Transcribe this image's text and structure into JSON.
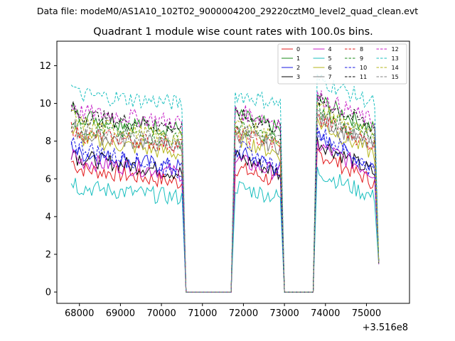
{
  "suptitle": "Data file: modeM0/AS1A10_102T02_9000004200_29220cztM0_level2_quad_clean.evt",
  "chart_data": {
    "type": "line",
    "title": "Quadrant 1 module wise count rates with 100.0s bins.",
    "xlabel": "",
    "ylabel": "",
    "x_offset_label": "+3.516e8",
    "xlim": [
      67450,
      76050
    ],
    "ylim": [
      -0.6,
      13.3
    ],
    "xticks": [
      68000,
      69000,
      70000,
      71000,
      72000,
      73000,
      74000,
      75000
    ],
    "yticks": [
      0,
      2,
      4,
      6,
      8,
      10,
      12
    ],
    "legend_position": "top-right",
    "series": [
      {
        "name": "0",
        "color": "#e31a1c",
        "dash": "solid",
        "base": 6.6,
        "trend": -0.8
      },
      {
        "name": "1",
        "color": "#1a8a1a",
        "dash": "solid",
        "base": 9.4,
        "trend": -0.8
      },
      {
        "name": "2",
        "color": "#1a1ae3",
        "dash": "solid",
        "base": 7.4,
        "trend": -0.8
      },
      {
        "name": "3",
        "color": "#000000",
        "dash": "solid",
        "base": 7.2,
        "trend": -0.9
      },
      {
        "name": "4",
        "color": "#c41ac4",
        "dash": "solid",
        "base": 7.0,
        "trend": -0.7
      },
      {
        "name": "5",
        "color": "#1abfbf",
        "dash": "solid",
        "base": 5.6,
        "trend": -0.6
      },
      {
        "name": "6",
        "color": "#b5b51a",
        "dash": "solid",
        "base": 8.2,
        "trend": -0.9
      },
      {
        "name": "7",
        "color": "#808080",
        "dash": "solid",
        "base": 8.4,
        "trend": -0.7
      },
      {
        "name": "8",
        "color": "#e31a1c",
        "dash": "dashed",
        "base": 8.4,
        "trend": -0.6
      },
      {
        "name": "9",
        "color": "#1a8a1a",
        "dash": "dashed",
        "base": 8.8,
        "trend": -0.8
      },
      {
        "name": "10",
        "color": "#1a1ae3",
        "dash": "dashed",
        "base": 7.8,
        "trend": -1.4
      },
      {
        "name": "11",
        "color": "#000000",
        "dash": "dashed",
        "base": 9.4,
        "trend": -0.7
      },
      {
        "name": "12",
        "color": "#c41ac4",
        "dash": "dashed",
        "base": 9.6,
        "trend": -0.6
      },
      {
        "name": "13",
        "color": "#1abfbf",
        "dash": "dashed",
        "base": 10.5,
        "trend": -0.5
      },
      {
        "name": "14",
        "color": "#b5b51a",
        "dash": "dashed",
        "base": 9.0,
        "trend": -0.9
      },
      {
        "name": "15",
        "color": "#808080",
        "dash": "dashed",
        "base": 8.6,
        "trend": -0.6
      }
    ],
    "segments": [
      {
        "start": 67800,
        "end": 70500,
        "on": true
      },
      {
        "start": 70600,
        "end": 71700,
        "on": false
      },
      {
        "start": 71800,
        "end": 72900,
        "on": true
      },
      {
        "start": 73000,
        "end": 73700,
        "on": false
      },
      {
        "start": 73800,
        "end": 75200,
        "on": true
      }
    ],
    "x_end": 75300,
    "end_value": 1.6
  }
}
